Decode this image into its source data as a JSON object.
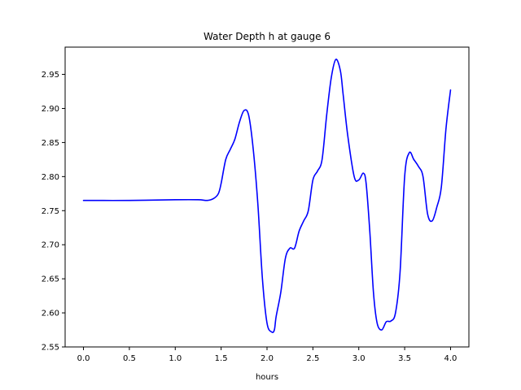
{
  "chart_data": {
    "type": "line",
    "title": "Water Depth h at gauge 6",
    "xlabel": "hours",
    "ylabel": "",
    "xlim": [
      -0.2,
      4.2
    ],
    "ylim": [
      2.55,
      2.99
    ],
    "xticks": [
      0.0,
      0.5,
      1.0,
      1.5,
      2.0,
      2.5,
      3.0,
      3.5,
      4.0
    ],
    "xtick_labels": [
      "0.0",
      "0.5",
      "1.0",
      "1.5",
      "2.0",
      "2.5",
      "3.0",
      "3.5",
      "4.0"
    ],
    "yticks": [
      2.55,
      2.6,
      2.65,
      2.7,
      2.75,
      2.8,
      2.85,
      2.9,
      2.95
    ],
    "ytick_labels": [
      "2.55",
      "2.60",
      "2.65",
      "2.70",
      "2.75",
      "2.80",
      "2.85",
      "2.90",
      "2.95"
    ],
    "grid": false,
    "legend": "none",
    "line_color": "#0000ff",
    "series": [
      {
        "x": [
          0.0,
          0.5,
          1.0,
          1.25,
          1.35,
          1.42,
          1.47,
          1.5,
          1.55,
          1.6,
          1.65,
          1.7,
          1.75,
          1.8,
          1.85,
          1.9,
          1.95,
          2.0,
          2.05,
          2.08,
          2.1,
          2.15,
          2.2,
          2.25,
          2.3,
          2.35,
          2.4,
          2.45,
          2.5,
          2.55,
          2.6,
          2.65,
          2.7,
          2.75,
          2.8,
          2.83,
          2.88,
          2.95,
          3.0,
          3.05,
          3.08,
          3.12,
          3.16,
          3.2,
          3.25,
          3.3,
          3.35,
          3.4,
          3.45,
          3.5,
          3.55,
          3.6,
          3.65,
          3.7,
          3.75,
          3.8,
          3.85,
          3.9,
          3.95,
          4.0
        ],
        "y": [
          2.765,
          2.765,
          2.766,
          2.766,
          2.765,
          2.768,
          2.775,
          2.79,
          2.825,
          2.84,
          2.855,
          2.88,
          2.897,
          2.89,
          2.84,
          2.76,
          2.65,
          2.585,
          2.572,
          2.575,
          2.595,
          2.63,
          2.68,
          2.695,
          2.695,
          2.72,
          2.735,
          2.75,
          2.795,
          2.808,
          2.825,
          2.89,
          2.945,
          2.972,
          2.955,
          2.92,
          2.86,
          2.8,
          2.795,
          2.805,
          2.79,
          2.72,
          2.63,
          2.585,
          2.575,
          2.587,
          2.588,
          2.6,
          2.66,
          2.8,
          2.835,
          2.825,
          2.815,
          2.8,
          2.745,
          2.735,
          2.755,
          2.785,
          2.87,
          2.927
        ]
      }
    ]
  }
}
